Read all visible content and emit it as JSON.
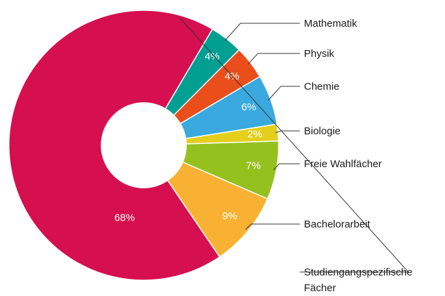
{
  "chart_data": {
    "type": "pie",
    "categories": [
      "Mathematik",
      "Physik",
      "Chemie",
      "Biologie",
      "Freie Wahlfächer",
      "Bachelorarbeit",
      "Studiengangspezifische Fächer"
    ],
    "values": [
      4,
      4,
      6,
      2,
      7,
      9,
      68
    ],
    "value_labels": [
      "4%",
      "4%",
      "6%",
      "2%",
      "7%",
      "9%",
      "68%"
    ],
    "colors": [
      "#009f92",
      "#e94e1b",
      "#3aa9e0",
      "#e3cf1c",
      "#95c11f",
      "#f8b133",
      "#d50f50"
    ]
  }
}
